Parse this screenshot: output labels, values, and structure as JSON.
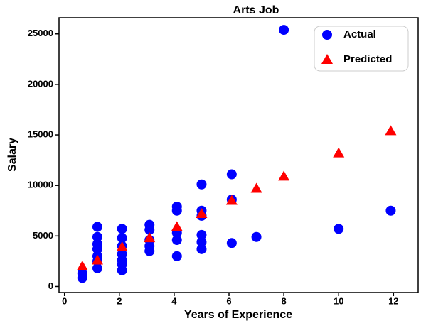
{
  "chart_data": {
    "type": "scatter",
    "title": "Arts Job",
    "x_label": "Years of Experience",
    "y_label": "Salary",
    "xlim": [
      -0.2,
      12.9
    ],
    "ylim": [
      -600,
      26600
    ],
    "xticks": [
      0,
      2,
      4,
      6,
      8,
      10,
      12
    ],
    "yticks": [
      0,
      5000,
      10000,
      15000,
      20000,
      25000
    ],
    "legend": "upper-right",
    "series": [
      {
        "name": "Actual",
        "color": "#0000ff",
        "marker": "circle",
        "x": [
          0.65,
          0.65,
          1.2,
          1.2,
          1.2,
          1.2,
          1.2,
          1.2,
          1.2,
          2.1,
          2.1,
          2.1,
          2.1,
          2.1,
          2.1,
          2.1,
          3.1,
          3.1,
          3.1,
          3.1,
          3.1,
          4.1,
          4.1,
          4.1,
          4.1,
          4.1,
          5.0,
          5.0,
          5.0,
          5.0,
          5.0,
          5.0,
          6.1,
          6.1,
          6.1,
          7.0,
          8.0,
          10.0,
          11.9
        ],
        "y": [
          1300,
          850,
          5900,
          4900,
          4200,
          3700,
          3000,
          2500,
          1800,
          5700,
          4800,
          4000,
          3200,
          2600,
          2200,
          1600,
          6100,
          5600,
          4600,
          4000,
          3500,
          7900,
          7500,
          5300,
          4600,
          3000,
          10100,
          7500,
          7000,
          5100,
          4400,
          3700,
          11100,
          8600,
          4300,
          4900,
          25400,
          5700,
          7500
        ]
      },
      {
        "name": "Predicted",
        "color": "#ff0000",
        "marker": "triangle",
        "x": [
          0.65,
          1.2,
          2.1,
          3.1,
          4.1,
          5.0,
          6.1,
          7.0,
          8.0,
          10.0,
          11.9
        ],
        "y": [
          2000,
          2600,
          3900,
          4800,
          5900,
          7200,
          8500,
          9700,
          10900,
          13200,
          15400
        ]
      }
    ]
  }
}
